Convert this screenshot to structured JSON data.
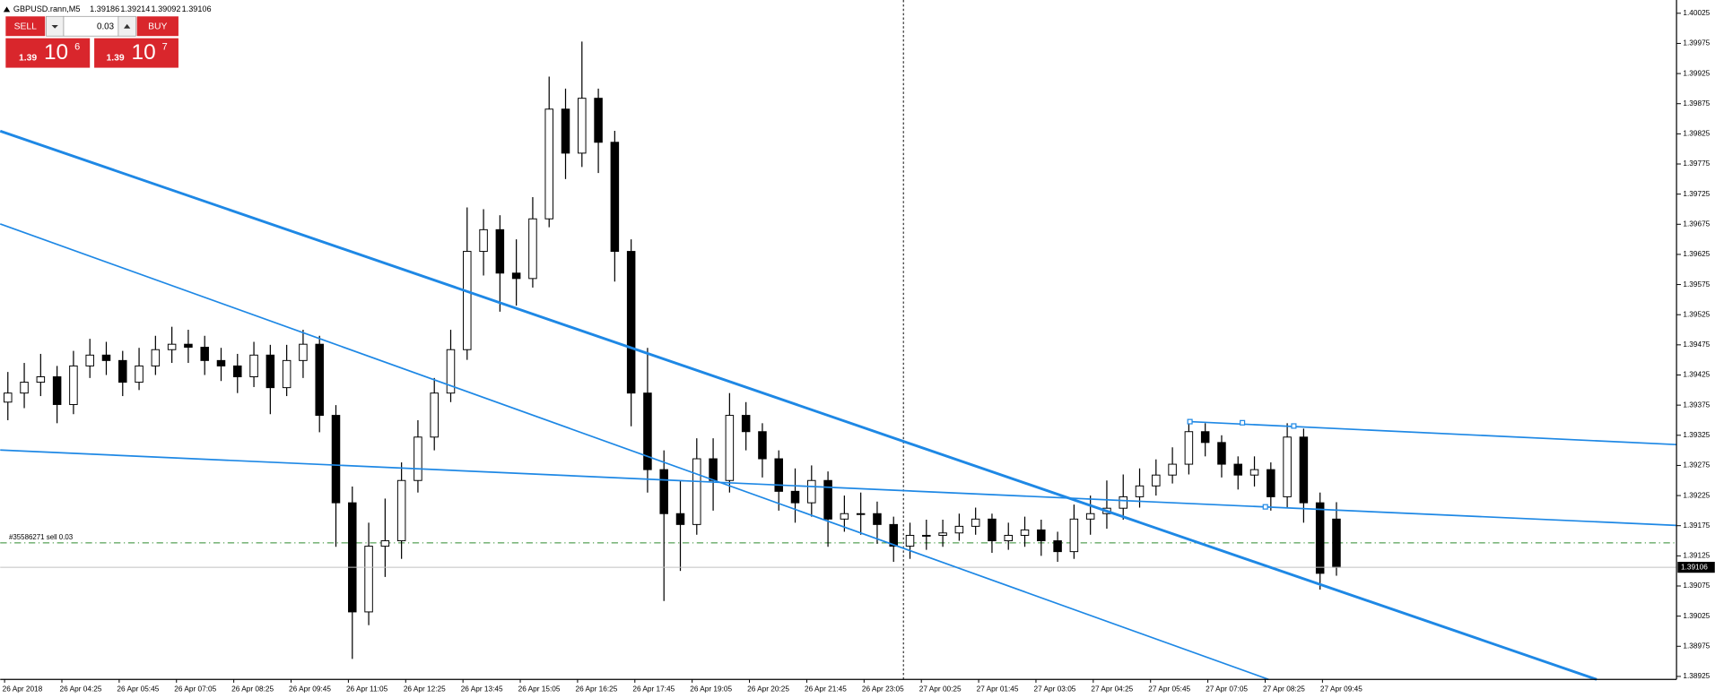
{
  "header": {
    "symbol": "GBPUSD.rann,M5"
  },
  "trade_panel": {
    "sell": "SELL",
    "buy": "BUY",
    "lot": "0.03",
    "sell_price": {
      "prefix": "1.39",
      "big": "10",
      "sup": "6"
    },
    "buy_price": {
      "prefix": "1.39",
      "big": "10",
      "sup": "7"
    }
  },
  "chart_data": {
    "type": "candlestick",
    "open": [
      1.3938,
      1.39395,
      1.39413,
      1.39422,
      1.39376,
      1.3944,
      1.39458,
      1.39449,
      1.39413,
      1.3944,
      1.39467,
      1.39476,
      1.39471,
      1.39449,
      1.3944,
      1.39422,
      1.39458,
      1.39404,
      1.39449,
      1.39476,
      1.39358,
      1.39213,
      1.39032,
      1.39141,
      1.3915,
      1.3925,
      1.39322,
      1.39395,
      1.39467,
      1.3963,
      1.39666,
      1.39594,
      1.39585,
      1.39684,
      1.39866,
      1.39793,
      1.39884,
      1.39811,
      1.3963,
      1.39395,
      1.39268,
      1.39195,
      1.39177,
      1.39286,
      1.3925,
      1.39358,
      1.39331,
      1.39286,
      1.39232,
      1.39213,
      1.3925,
      1.39186,
      1.39195,
      1.39195,
      1.39177,
      1.39141,
      1.39159,
      1.39159,
      1.39163,
      1.39174,
      1.39186,
      1.3915,
      1.39159,
      1.39168,
      1.3915,
      1.39132,
      1.39186,
      1.39195,
      1.39204,
      1.39223,
      1.39241,
      1.39259,
      1.39277,
      1.39331,
      1.39313,
      1.39277,
      1.39259,
      1.39268,
      1.39223,
      1.39322,
      1.39213,
      1.39186
    ],
    "high": [
      1.3943,
      1.39445,
      1.3946,
      1.3944,
      1.39465,
      1.39485,
      1.3948,
      1.39465,
      1.3947,
      1.3949,
      1.39505,
      1.395,
      1.3949,
      1.3947,
      1.3946,
      1.3948,
      1.39475,
      1.39475,
      1.395,
      1.3949,
      1.39375,
      1.3924,
      1.3918,
      1.3922,
      1.3928,
      1.3935,
      1.3942,
      1.395,
      1.39703,
      1.397,
      1.3969,
      1.3965,
      1.3972,
      1.3992,
      1.399,
      1.39978,
      1.399,
      1.3983,
      1.3965,
      1.3947,
      1.393,
      1.3925,
      1.3932,
      1.3932,
      1.39395,
      1.3938,
      1.39345,
      1.393,
      1.3927,
      1.39275,
      1.39265,
      1.39225,
      1.3923,
      1.39215,
      1.3919,
      1.3918,
      1.39185,
      1.39185,
      1.39195,
      1.39205,
      1.39195,
      1.3918,
      1.3919,
      1.39185,
      1.39165,
      1.3921,
      1.39225,
      1.3925,
      1.3926,
      1.3927,
      1.39285,
      1.39305,
      1.39349,
      1.39345,
      1.39325,
      1.3929,
      1.3929,
      1.3928,
      1.39345,
      1.39336,
      1.3923,
      1.39214
    ],
    "low": [
      1.3935,
      1.3937,
      1.3939,
      1.39345,
      1.3936,
      1.3942,
      1.39425,
      1.3939,
      1.394,
      1.39425,
      1.39445,
      1.39445,
      1.39425,
      1.39415,
      1.39395,
      1.39405,
      1.3936,
      1.3939,
      1.3942,
      1.3933,
      1.3914,
      1.38954,
      1.3901,
      1.3909,
      1.3912,
      1.3923,
      1.393,
      1.3938,
      1.3945,
      1.3959,
      1.3953,
      1.3954,
      1.3957,
      1.3967,
      1.3975,
      1.3977,
      1.3976,
      1.3958,
      1.3934,
      1.3923,
      1.3905,
      1.391,
      1.3916,
      1.392,
      1.3923,
      1.393,
      1.39255,
      1.392,
      1.3918,
      1.3919,
      1.3914,
      1.39165,
      1.3916,
      1.39145,
      1.39115,
      1.3912,
      1.39135,
      1.3914,
      1.3915,
      1.3916,
      1.3913,
      1.39135,
      1.3914,
      1.39125,
      1.39115,
      1.3912,
      1.3916,
      1.3917,
      1.39185,
      1.39205,
      1.39225,
      1.39245,
      1.3926,
      1.3929,
      1.39255,
      1.39235,
      1.3924,
      1.392,
      1.39205,
      1.3918,
      1.39069,
      1.39092
    ],
    "close": [
      1.39395,
      1.39413,
      1.39422,
      1.39376,
      1.3944,
      1.39458,
      1.39449,
      1.39413,
      1.3944,
      1.39467,
      1.39476,
      1.39471,
      1.39449,
      1.3944,
      1.39422,
      1.39458,
      1.39404,
      1.39449,
      1.39476,
      1.39358,
      1.39213,
      1.39032,
      1.39141,
      1.3915,
      1.3925,
      1.39322,
      1.39395,
      1.39467,
      1.3963,
      1.39666,
      1.39594,
      1.39585,
      1.39684,
      1.39866,
      1.39793,
      1.39884,
      1.39811,
      1.3963,
      1.39395,
      1.39268,
      1.39195,
      1.39177,
      1.39286,
      1.3925,
      1.39358,
      1.39331,
      1.39286,
      1.39232,
      1.39213,
      1.3925,
      1.39186,
      1.39195,
      1.39195,
      1.39177,
      1.39141,
      1.39159,
      1.39159,
      1.39163,
      1.39174,
      1.39186,
      1.3915,
      1.39159,
      1.39168,
      1.3915,
      1.39132,
      1.39186,
      1.39195,
      1.39204,
      1.39223,
      1.39241,
      1.39259,
      1.39277,
      1.39331,
      1.39313,
      1.39277,
      1.39259,
      1.39268,
      1.39223,
      1.39322,
      1.39213,
      1.39096,
      1.39106
    ],
    "xlabels": [
      "26 Apr 2018",
      "26 Apr 04:25",
      "26 Apr 05:45",
      "26 Apr 07:05",
      "26 Apr 08:25",
      "26 Apr 09:45",
      "26 Apr 11:05",
      "26 Apr 12:25",
      "26 Apr 13:45",
      "26 Apr 15:05",
      "26 Apr 16:25",
      "26 Apr 17:45",
      "26 Apr 19:05",
      "26 Apr 20:25",
      "26 Apr 21:45",
      "26 Apr 23:05",
      "27 Apr 00:25",
      "27 Apr 01:45",
      "27 Apr 03:05",
      "27 Apr 04:25",
      "27 Apr 05:45",
      "27 Apr 07:05",
      "27 Apr 08:25",
      "27 Apr 09:45"
    ],
    "ylim": [
      1.3892,
      1.40047
    ],
    "yticks": [
      1.40025,
      1.39975,
      1.39925,
      1.39875,
      1.39825,
      1.39775,
      1.39725,
      1.39675,
      1.39625,
      1.39575,
      1.39525,
      1.39475,
      1.39425,
      1.39375,
      1.39325,
      1.39275,
      1.39225,
      1.39175,
      1.39125,
      1.39075,
      1.39025,
      1.38975,
      1.38925
    ],
    "order_label": "#35586271 sell 0.03"
  }
}
